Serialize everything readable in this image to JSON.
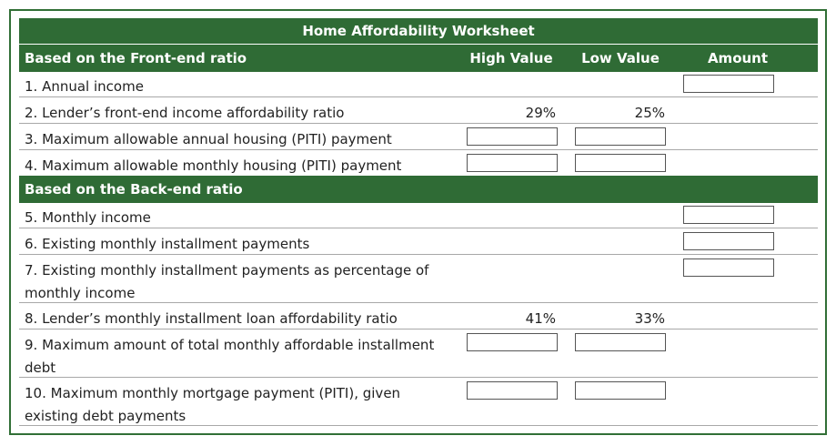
{
  "title": "Home Affordability Worksheet",
  "front_end": {
    "heading": "Based on the Front-end ratio",
    "col_high": "High Value",
    "col_low": "Low Value",
    "col_amount": "Amount",
    "rows": [
      {
        "label": "1. Annual income",
        "high": "",
        "low": ""
      },
      {
        "label": "2. Lender’s front-end income affordability ratio",
        "high": "29%",
        "low": "25%"
      },
      {
        "label": "3. Maximum allowable annual housing (PITI) payment",
        "high": "",
        "low": ""
      },
      {
        "label": "4. Maximum allowable monthly housing (PITI) payment",
        "high": "",
        "low": ""
      }
    ]
  },
  "back_end": {
    "heading": "Based on the Back-end ratio",
    "rows": [
      {
        "label": "5. Monthly income",
        "high": "",
        "low": ""
      },
      {
        "label": "6. Existing monthly installment payments",
        "high": "",
        "low": ""
      },
      {
        "label": "7. Existing monthly installment payments as percentage of monthly income",
        "high": "",
        "low": ""
      },
      {
        "label": "8. Lender’s monthly installment loan affordability ratio",
        "high": "41%",
        "low": "33%"
      },
      {
        "label": "9. Maximum amount of total monthly affordable installment debt",
        "high": "",
        "low": ""
      },
      {
        "label": "10. Maximum monthly mortgage payment (PITI), given existing debt payments",
        "high": "",
        "low": ""
      }
    ]
  }
}
